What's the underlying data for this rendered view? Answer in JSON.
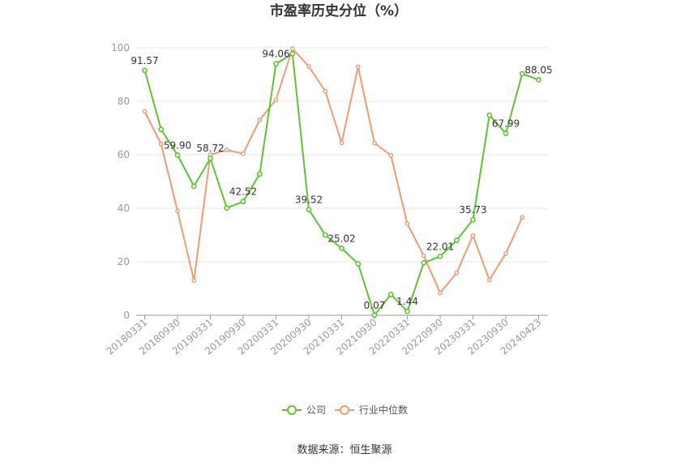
{
  "chart_data": {
    "type": "line",
    "title": "市盈率历史分位（%）",
    "source": "数据来源：恒生聚源",
    "ylim": [
      0,
      100
    ],
    "yticks": [
      "0",
      "20",
      "40",
      "60",
      "80",
      "100"
    ],
    "x_tick_labels": [
      "20180331",
      "20180930",
      "20190331",
      "20190930",
      "20200331",
      "20200930",
      "20210331",
      "20210930",
      "20220331",
      "20220930",
      "20230331",
      "20230930",
      "20240423"
    ],
    "x_tick_positions": [
      0,
      2,
      4,
      6,
      8,
      10,
      12,
      14,
      16,
      18,
      20,
      22,
      24
    ],
    "legend_position": "bottom",
    "series": [
      {
        "name": "公司",
        "color": "#5cc72e",
        "values": [
          91.57,
          69.5,
          59.9,
          48.2,
          58.72,
          40.1,
          42.52,
          52.8,
          94.06,
          97.8,
          39.52,
          30.0,
          25.02,
          19.2,
          0.07,
          7.8,
          1.44,
          19.6,
          22.01,
          28.0,
          35.73,
          74.8,
          67.99,
          90.3,
          88.05
        ],
        "labels": {
          "0": "91.57",
          "2": "59.90",
          "4": "58.72",
          "6": "42.52",
          "8": "94.06",
          "10": "39.52",
          "12": "25.02",
          "14": "0.07",
          "16": "1.44",
          "18": "22.01",
          "20": "35.73",
          "22": "67.99",
          "24": "88.05"
        }
      },
      {
        "name": "行业中位数",
        "color": "#f29b72",
        "values": [
          76.2,
          64.0,
          39.0,
          13.0,
          60.0,
          61.8,
          60.4,
          73.0,
          80.6,
          99.7,
          93.0,
          83.8,
          64.4,
          92.9,
          64.4,
          59.8,
          34.2,
          22.3,
          8.4,
          15.8,
          29.8,
          13.2,
          23.1,
          36.6,
          null
        ]
      }
    ]
  }
}
